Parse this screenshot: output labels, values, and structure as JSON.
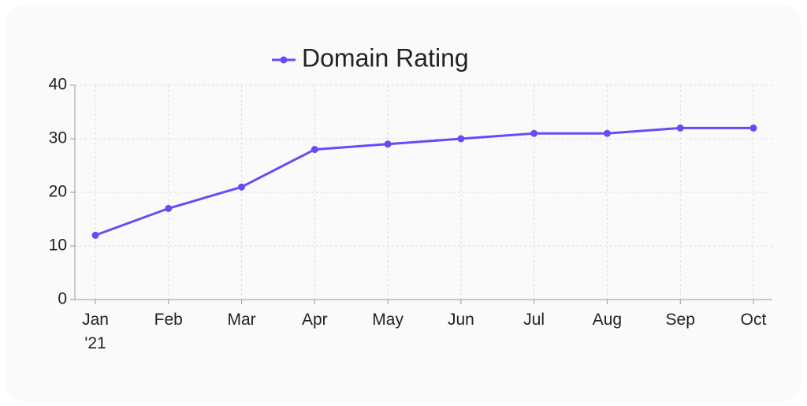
{
  "chart_data": {
    "type": "line",
    "categories": [
      "Jan\n'21",
      "Feb",
      "Mar",
      "Apr",
      "May",
      "Jun",
      "Jul",
      "Aug",
      "Sep",
      "Oct"
    ],
    "series": [
      {
        "name": "Domain Rating",
        "color": "#6a4af5",
        "values": [
          12,
          17,
          21,
          28,
          29,
          30,
          31,
          31,
          32,
          32
        ]
      }
    ],
    "ylim": [
      0,
      40
    ],
    "yticks": [
      0,
      10,
      20,
      30,
      40
    ],
    "grid": true,
    "legend": "top"
  }
}
